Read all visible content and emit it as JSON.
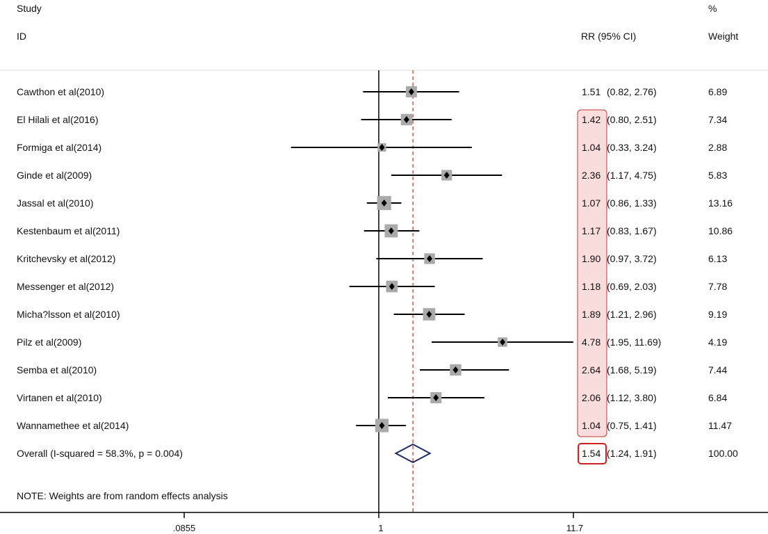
{
  "chart_data": {
    "type": "forest",
    "header": {
      "study": "Study",
      "id": "ID",
      "effect": "RR (95% CI)",
      "pct": "%",
      "weight": "Weight"
    },
    "scale": "log",
    "xlim": [
      0.0855,
      11.7
    ],
    "reference_line": 1,
    "overall_line": 1.54,
    "x_ticks": [
      {
        "value": 0.0855,
        "label": ".0855"
      },
      {
        "value": 1,
        "label": "1"
      },
      {
        "value": 11.7,
        "label": "11.7"
      }
    ],
    "studies": [
      {
        "label": "Cawthon et al(2010)",
        "rr": 1.51,
        "lo": 0.82,
        "hi": 2.76,
        "rr_text": "1.51",
        "ci_text": "(0.82, 2.76)",
        "weight": 6.89,
        "weight_text": "6.89",
        "highlight": false
      },
      {
        "label": "El Hilali et al(2016)",
        "rr": 1.42,
        "lo": 0.8,
        "hi": 2.51,
        "rr_text": "1.42",
        "ci_text": "(0.80, 2.51)",
        "weight": 7.34,
        "weight_text": "7.34",
        "highlight": true
      },
      {
        "label": "Formiga et al(2014)",
        "rr": 1.04,
        "lo": 0.33,
        "hi": 3.24,
        "rr_text": "1.04",
        "ci_text": "(0.33, 3.24)",
        "weight": 2.88,
        "weight_text": "2.88",
        "highlight": true
      },
      {
        "label": "Ginde et al(2009)",
        "rr": 2.36,
        "lo": 1.17,
        "hi": 4.75,
        "rr_text": "2.36",
        "ci_text": "(1.17, 4.75)",
        "weight": 5.83,
        "weight_text": "5.83",
        "highlight": true
      },
      {
        "label": "Jassal et al(2010)",
        "rr": 1.07,
        "lo": 0.86,
        "hi": 1.33,
        "rr_text": "1.07",
        "ci_text": "(0.86, 1.33)",
        "weight": 13.16,
        "weight_text": "13.16",
        "highlight": true
      },
      {
        "label": "Kestenbaum et al(2011)",
        "rr": 1.17,
        "lo": 0.83,
        "hi": 1.67,
        "rr_text": "1.17",
        "ci_text": "(0.83, 1.67)",
        "weight": 10.86,
        "weight_text": "10.86",
        "highlight": true
      },
      {
        "label": "Kritchevsky et al(2012)",
        "rr": 1.9,
        "lo": 0.97,
        "hi": 3.72,
        "rr_text": "1.90",
        "ci_text": "(0.97, 3.72)",
        "weight": 6.13,
        "weight_text": "6.13",
        "highlight": true
      },
      {
        "label": "Messenger et al(2012)",
        "rr": 1.18,
        "lo": 0.69,
        "hi": 2.03,
        "rr_text": "1.18",
        "ci_text": "(0.69, 2.03)",
        "weight": 7.78,
        "weight_text": "7.78",
        "highlight": true
      },
      {
        "label": "Micha?lsson et al(2010)",
        "rr": 1.89,
        "lo": 1.21,
        "hi": 2.96,
        "rr_text": "1.89",
        "ci_text": "(1.21, 2.96)",
        "weight": 9.19,
        "weight_text": "9.19",
        "highlight": true
      },
      {
        "label": "Pilz et al(2009)",
        "rr": 4.78,
        "lo": 1.95,
        "hi": 11.69,
        "rr_text": "4.78",
        "ci_text": "(1.95, 11.69)",
        "weight": 4.19,
        "weight_text": "4.19",
        "highlight": true
      },
      {
        "label": "Semba et al(2010)",
        "rr": 2.64,
        "lo": 1.68,
        "hi": 5.19,
        "rr_text": "2.64",
        "ci_text": "(1.68, 5.19)",
        "weight": 7.44,
        "weight_text": "7.44",
        "highlight": true
      },
      {
        "label": "Virtanen et al(2010)",
        "rr": 2.06,
        "lo": 1.12,
        "hi": 3.8,
        "rr_text": "2.06",
        "ci_text": "(1.12, 3.80)",
        "weight": 6.84,
        "weight_text": "6.84",
        "highlight": true
      },
      {
        "label": "Wannamethee et al(2014)",
        "rr": 1.04,
        "lo": 0.75,
        "hi": 1.41,
        "rr_text": "1.04",
        "ci_text": "(0.75, 1.41)",
        "weight": 11.47,
        "weight_text": "11.47",
        "highlight": true
      }
    ],
    "overall": {
      "label": "Overall  (I-squared = 58.3%, p = 0.004)",
      "rr": 1.54,
      "lo": 1.24,
      "hi": 1.91,
      "rr_text": "1.54",
      "ci_text": "(1.24, 1.91)",
      "weight_text": "100.00"
    },
    "note": "NOTE: Weights are from random effects analysis",
    "colors": {
      "text": "#111111",
      "line": "#000000",
      "dashed": "#c0392b",
      "box": "#aaaaaa",
      "diamond": "#1f2a6b",
      "highlight_fill": "#f9dcdc",
      "highlight_border": "#c0392b",
      "overall_box_border": "#cc1f1f"
    }
  }
}
